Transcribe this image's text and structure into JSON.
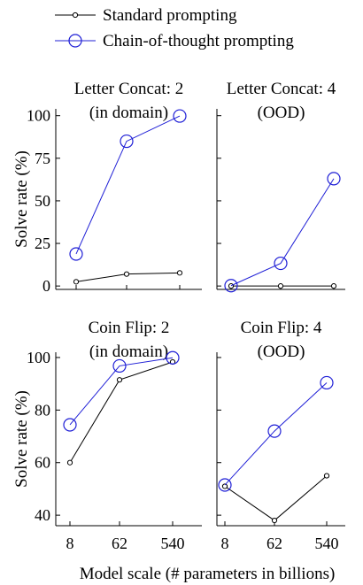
{
  "legend": {
    "placement": "top-center",
    "entries": [
      {
        "label": "Standard prompting",
        "color": "#000000",
        "marker": "small-circle"
      },
      {
        "label": "Chain-of-thought prompting",
        "color": "#1f1fd6",
        "marker": "large-circle"
      }
    ]
  },
  "figure": {
    "xlabel_shared": "Model scale (# parameters in billions)"
  },
  "chart_data": [
    {
      "type": "line",
      "title_lines": [
        "Letter Concat: 2",
        "(in domain)"
      ],
      "ylabel": "Solve rate (%)",
      "x": [
        "8",
        "62",
        "540"
      ],
      "ylim": [
        -2,
        104
      ],
      "yticks": [
        0,
        25,
        50,
        75,
        100
      ],
      "show_xticklabels": false,
      "show_yticklabels": true,
      "series": [
        {
          "name": "Standard prompting",
          "values": [
            2.5,
            7,
            7.7
          ]
        },
        {
          "name": "Chain-of-thought prompting",
          "values": [
            18.8,
            85,
            99.8
          ]
        }
      ]
    },
    {
      "type": "line",
      "title_lines": [
        "Letter Concat: 4",
        "(OOD)"
      ],
      "ylabel": "",
      "x": [
        "8",
        "62",
        "540"
      ],
      "ylim": [
        -2,
        104
      ],
      "yticks": [
        0,
        25,
        50,
        75,
        100
      ],
      "show_xticklabels": false,
      "show_yticklabels": false,
      "series": [
        {
          "name": "Standard prompting",
          "values": [
            0,
            0,
            0
          ]
        },
        {
          "name": "Chain-of-thought prompting",
          "values": [
            0.2,
            13.3,
            63
          ]
        }
      ]
    },
    {
      "type": "line",
      "title_lines": [
        "Coin Flip: 2",
        "(in domain)"
      ],
      "ylabel": "Solve rate (%)",
      "x": [
        "8",
        "62",
        "540"
      ],
      "ylim": [
        36,
        102
      ],
      "yticks": [
        40,
        60,
        80,
        100
      ],
      "show_xticklabels": true,
      "show_yticklabels": true,
      "series": [
        {
          "name": "Standard prompting",
          "values": [
            60,
            91.5,
            98.3
          ]
        },
        {
          "name": "Chain-of-thought prompting",
          "values": [
            74.4,
            96.8,
            99.9
          ]
        }
      ]
    },
    {
      "type": "line",
      "title_lines": [
        "Coin Flip: 4",
        "(OOD)"
      ],
      "ylabel": "",
      "x": [
        "8",
        "62",
        "540"
      ],
      "ylim": [
        36,
        102
      ],
      "yticks": [
        40,
        60,
        80,
        100
      ],
      "show_xticklabels": true,
      "show_yticklabels": false,
      "series": [
        {
          "name": "Standard prompting",
          "values": [
            51,
            38,
            55
          ]
        },
        {
          "name": "Chain-of-thought prompting",
          "values": [
            51.5,
            72,
            90.4
          ]
        }
      ]
    }
  ]
}
